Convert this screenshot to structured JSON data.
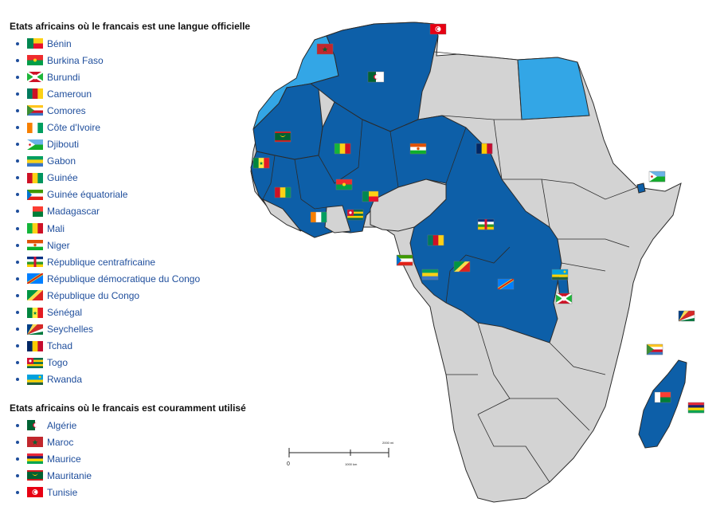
{
  "legend": {
    "official_title": "Etats africains où le francais est une langue officielle",
    "common_title": "Etats africains où le francais est couramment utilisé",
    "official": [
      {
        "name": "Bénin",
        "flag": "benin-flag"
      },
      {
        "name": "Burkina Faso",
        "flag": "burkina-faso-flag"
      },
      {
        "name": "Burundi",
        "flag": "burundi-flag"
      },
      {
        "name": "Cameroun",
        "flag": "cameroun-flag"
      },
      {
        "name": "Comores",
        "flag": "comores-flag"
      },
      {
        "name": "Côte d'Ivoire",
        "flag": "cote-divoire-flag"
      },
      {
        "name": "Djibouti",
        "flag": "djibouti-flag"
      },
      {
        "name": "Gabon",
        "flag": "gabon-flag"
      },
      {
        "name": "Guinée",
        "flag": "guinee-flag"
      },
      {
        "name": "Guinée équatoriale",
        "flag": "guinee-equatoriale-flag"
      },
      {
        "name": "Madagascar",
        "flag": "madagascar-flag"
      },
      {
        "name": "Mali",
        "flag": "mali-flag"
      },
      {
        "name": "Niger",
        "flag": "niger-flag"
      },
      {
        "name": "République centrafricaine",
        "flag": "rca-flag"
      },
      {
        "name": "République démocratique du Congo",
        "flag": "rdc-flag"
      },
      {
        "name": "République du Congo",
        "flag": "congo-flag"
      },
      {
        "name": "Sénégal",
        "flag": "senegal-flag"
      },
      {
        "name": "Seychelles",
        "flag": "seychelles-flag"
      },
      {
        "name": "Tchad",
        "flag": "tchad-flag"
      },
      {
        "name": "Togo",
        "flag": "togo-flag"
      },
      {
        "name": "Rwanda",
        "flag": "rwanda-flag"
      }
    ],
    "common": [
      {
        "name": "Algérie",
        "flag": "algerie-flag"
      },
      {
        "name": "Maroc",
        "flag": "maroc-flag"
      },
      {
        "name": "Maurice",
        "flag": "maurice-flag"
      },
      {
        "name": "Mauritanie",
        "flag": "mauritanie-flag"
      },
      {
        "name": "Tunisie",
        "flag": "tunisie-flag"
      }
    ]
  },
  "colors": {
    "official": "#0d5fa8",
    "common": "#33a6e6",
    "other": "#d3d3d3",
    "border": "#2b2b2b",
    "link": "#1f4e9c"
  },
  "scale": {
    "label_0": "0",
    "label_1000": "1000 km",
    "label_2000": "2000 mi"
  }
}
